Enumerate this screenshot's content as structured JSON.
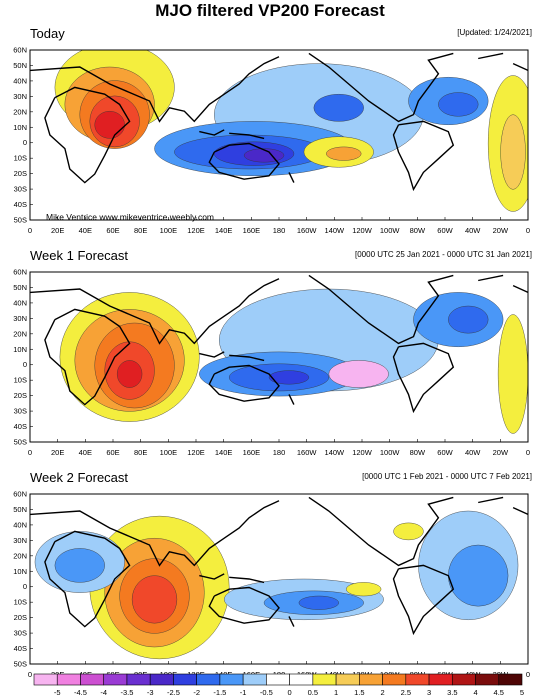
{
  "title": "MJO filtered VP200 Forecast",
  "panels": [
    {
      "title": "Today",
      "subtitle": "[Updated: 1/24/2021]",
      "credit": "Mike Ventrice www.mikeventrice.weebly.com"
    },
    {
      "title": "Week 1 Forecast",
      "subtitle": "[0000 UTC 25 Jan 2021 - 0000 UTC 31 Jan 2021]",
      "credit": ""
    },
    {
      "title": "Week 2 Forecast",
      "subtitle": "[0000 UTC 1 Feb 2021 - 0000 UTC 7 Feb 2021]",
      "credit": ""
    }
  ],
  "lat_labels": [
    "60N",
    "50N",
    "40N",
    "30N",
    "20N",
    "10N",
    "0",
    "10S",
    "20S",
    "30S",
    "40S",
    "50S"
  ],
  "lon_labels": [
    "0",
    "20E",
    "40E",
    "60E",
    "80E",
    "100E",
    "120E",
    "140E",
    "160E",
    "180",
    "160W",
    "140W",
    "120W",
    "100W",
    "80W",
    "60W",
    "40W",
    "20W",
    "0"
  ],
  "colorbar": {
    "labels": [
      "-5",
      "-4.5",
      "-4",
      "-3.5",
      "-3",
      "-2.5",
      "-2",
      "-1.5",
      "-1",
      "-0.5",
      "0",
      "0.5",
      "1",
      "1.5",
      "2",
      "2.5",
      "3",
      "3.5",
      "4",
      "4.5",
      "5"
    ],
    "colors": [
      "#f7b4f0",
      "#f080e0",
      "#cc4fd1",
      "#9a3bd4",
      "#6a2fd0",
      "#4a28c8",
      "#2f3fe0",
      "#2f6aee",
      "#4a97f7",
      "#9ecdf9",
      "#ffffff",
      "#ffffff",
      "#f4ee3e",
      "#f6cc57",
      "#f7a236",
      "#f47a20",
      "#f0482a",
      "#e01f22",
      "#b01515",
      "#7a0c0c",
      "#4e0505"
    ]
  }
}
